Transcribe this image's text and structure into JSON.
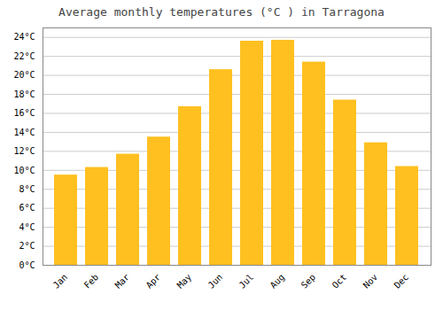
{
  "chart_data": {
    "type": "bar",
    "title": "Average monthly temperatures (°C ) in Tarragona",
    "categories": [
      "Jan",
      "Feb",
      "Mar",
      "Apr",
      "May",
      "Jun",
      "Jul",
      "Aug",
      "Sep",
      "Oct",
      "Nov",
      "Dec"
    ],
    "values": [
      9.5,
      10.3,
      11.7,
      13.5,
      16.7,
      20.6,
      23.6,
      23.7,
      21.4,
      17.4,
      12.9,
      10.4
    ],
    "color": "#FFC020",
    "ylim": [
      0,
      25
    ],
    "yticks": [
      {
        "value": 0,
        "label": "0°C"
      },
      {
        "value": 2,
        "label": "2°C"
      },
      {
        "value": 4,
        "label": "4°C"
      },
      {
        "value": 6,
        "label": "6°C"
      },
      {
        "value": 8,
        "label": "8°C"
      },
      {
        "value": 10,
        "label": "10°C"
      },
      {
        "value": 12,
        "label": "12°C"
      },
      {
        "value": 14,
        "label": "14°C"
      },
      {
        "value": 16,
        "label": "16°C"
      },
      {
        "value": 18,
        "label": "18°C"
      },
      {
        "value": 20,
        "label": "20°C"
      },
      {
        "value": 22,
        "label": "22°C"
      },
      {
        "value": 24,
        "label": "24°C"
      }
    ],
    "grid": true
  }
}
